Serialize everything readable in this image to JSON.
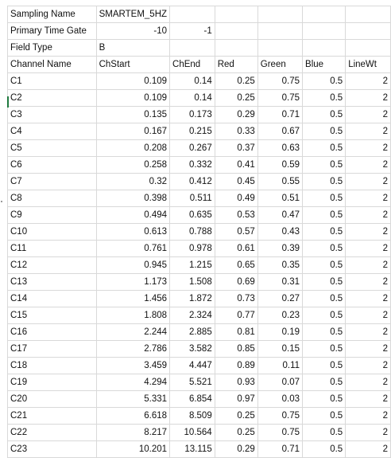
{
  "meta_rows": [
    {
      "a": "Sampling Name",
      "b": "SMARTEM_5HZ",
      "c": "",
      "d": "",
      "e": "",
      "f": "",
      "g": ""
    },
    {
      "a": "Primary Time Gate",
      "b": "-10",
      "c": "-1",
      "d": "",
      "e": "",
      "f": "",
      "g": ""
    },
    {
      "a": "Field Type",
      "b": "B",
      "c": "",
      "d": "",
      "e": "",
      "f": "",
      "g": ""
    }
  ],
  "header": [
    "Channel Name",
    "ChStart",
    "ChEnd",
    "Red",
    "Green",
    "Blue",
    "LineWt"
  ],
  "channels": [
    [
      "C1",
      "0.109",
      "0.14",
      "0.25",
      "0.75",
      "0.5",
      "2"
    ],
    [
      "C2",
      "0.109",
      "0.14",
      "0.25",
      "0.75",
      "0.5",
      "2"
    ],
    [
      "C3",
      "0.135",
      "0.173",
      "0.29",
      "0.71",
      "0.5",
      "2"
    ],
    [
      "C4",
      "0.167",
      "0.215",
      "0.33",
      "0.67",
      "0.5",
      "2"
    ],
    [
      "C5",
      "0.208",
      "0.267",
      "0.37",
      "0.63",
      "0.5",
      "2"
    ],
    [
      "C6",
      "0.258",
      "0.332",
      "0.41",
      "0.59",
      "0.5",
      "2"
    ],
    [
      "C7",
      "0.32",
      "0.412",
      "0.45",
      "0.55",
      "0.5",
      "2"
    ],
    [
      "C8",
      "0.398",
      "0.511",
      "0.49",
      "0.51",
      "0.5",
      "2"
    ],
    [
      "C9",
      "0.494",
      "0.635",
      "0.53",
      "0.47",
      "0.5",
      "2"
    ],
    [
      "C10",
      "0.613",
      "0.788",
      "0.57",
      "0.43",
      "0.5",
      "2"
    ],
    [
      "C11",
      "0.761",
      "0.978",
      "0.61",
      "0.39",
      "0.5",
      "2"
    ],
    [
      "C12",
      "0.945",
      "1.215",
      "0.65",
      "0.35",
      "0.5",
      "2"
    ],
    [
      "C13",
      "1.173",
      "1.508",
      "0.69",
      "0.31",
      "0.5",
      "2"
    ],
    [
      "C14",
      "1.456",
      "1.872",
      "0.73",
      "0.27",
      "0.5",
      "2"
    ],
    [
      "C15",
      "1.808",
      "2.324",
      "0.77",
      "0.23",
      "0.5",
      "2"
    ],
    [
      "C16",
      "2.244",
      "2.885",
      "0.81",
      "0.19",
      "0.5",
      "2"
    ],
    [
      "C17",
      "2.786",
      "3.582",
      "0.85",
      "0.15",
      "0.5",
      "2"
    ],
    [
      "C18",
      "3.459",
      "4.447",
      "0.89",
      "0.11",
      "0.5",
      "2"
    ],
    [
      "C19",
      "4.294",
      "5.521",
      "0.93",
      "0.07",
      "0.5",
      "2"
    ],
    [
      "C20",
      "5.331",
      "6.854",
      "0.97",
      "0.03",
      "0.5",
      "2"
    ],
    [
      "C21",
      "6.618",
      "8.509",
      "0.25",
      "0.75",
      "0.5",
      "2"
    ],
    [
      "C22",
      "8.217",
      "10.564",
      "0.25",
      "0.75",
      "0.5",
      "2"
    ],
    [
      "C23",
      "10.201",
      "13.115",
      "0.29",
      "0.71",
      "0.5",
      "2"
    ]
  ],
  "colors": {
    "gridline": "#d9d9d9",
    "row_marker": "#1f7a3f"
  }
}
